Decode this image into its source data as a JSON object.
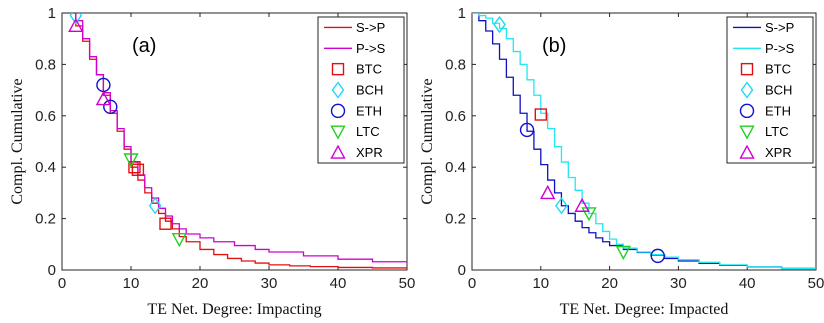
{
  "chart_data": [
    {
      "type": "line",
      "panel_label": "(a)",
      "xlabel": "TE Net. Degree: Impacting",
      "ylabel": "Compl. Cumulative",
      "xlim": [
        0,
        50
      ],
      "ylim": [
        0,
        1
      ],
      "xticks": [
        "0",
        "10",
        "20",
        "30",
        "40",
        "50"
      ],
      "yticks": [
        "0",
        "0.2",
        "0.4",
        "0.6",
        "0.8",
        "1"
      ],
      "grid": false,
      "legend_position": "top-right",
      "series": [
        {
          "name": "S->P",
          "style": "step",
          "color": "#e01010",
          "x": [
            0,
            2,
            3,
            4,
            5,
            6,
            7,
            8,
            9,
            10,
            11,
            12,
            13,
            14,
            15,
            16,
            17,
            18,
            20,
            22,
            24,
            26,
            28,
            30,
            33,
            36,
            40,
            45,
            50
          ],
          "y": [
            1.0,
            0.95,
            0.89,
            0.82,
            0.76,
            0.68,
            0.61,
            0.54,
            0.47,
            0.4,
            0.35,
            0.3,
            0.26,
            0.22,
            0.19,
            0.16,
            0.13,
            0.11,
            0.08,
            0.06,
            0.045,
            0.035,
            0.027,
            0.02,
            0.016,
            0.013,
            0.01,
            0.008,
            0.006
          ]
        },
        {
          "name": "P->S",
          "style": "step",
          "color": "#d000d0",
          "x": [
            0,
            2,
            3,
            4,
            5,
            6,
            7,
            8,
            9,
            10,
            11,
            12,
            13,
            14,
            15,
            16,
            17,
            18,
            20,
            22,
            25,
            28,
            30,
            35,
            40,
            45,
            50
          ],
          "y": [
            1.0,
            0.97,
            0.9,
            0.83,
            0.76,
            0.69,
            0.62,
            0.55,
            0.48,
            0.42,
            0.37,
            0.32,
            0.28,
            0.24,
            0.21,
            0.18,
            0.16,
            0.14,
            0.125,
            0.11,
            0.095,
            0.08,
            0.07,
            0.055,
            0.042,
            0.032,
            0.025
          ]
        }
      ],
      "markers": [
        {
          "name": "BTC",
          "shape": "square",
          "color": "#e01010",
          "points": [
            [
              10.5,
              0.4
            ],
            [
              11,
              0.39
            ],
            [
              15,
              0.18
            ]
          ]
        },
        {
          "name": "BCH",
          "shape": "diamond",
          "color": "#20d8f0",
          "points": [
            [
              2,
              0.99
            ],
            [
              13.5,
              0.25
            ]
          ]
        },
        {
          "name": "ETH",
          "shape": "circle",
          "color": "#1010d0",
          "points": [
            [
              6,
              0.72
            ],
            [
              7,
              0.635
            ]
          ]
        },
        {
          "name": "LTC",
          "shape": "triangle-down",
          "color": "#20d020",
          "points": [
            [
              10,
              0.43
            ],
            [
              17,
              0.12
            ]
          ]
        },
        {
          "name": "XPR",
          "shape": "triangle-up",
          "color": "#d000d0",
          "points": [
            [
              2,
              0.95
            ],
            [
              6,
              0.665
            ]
          ]
        }
      ]
    },
    {
      "type": "line",
      "panel_label": "(b)",
      "xlabel": "TE Net. Degree: Impacted",
      "ylabel": "Compl. Cumulative",
      "xlim": [
        0,
        50
      ],
      "ylim": [
        0,
        1
      ],
      "xticks": [
        "0",
        "10",
        "20",
        "30",
        "40",
        "50"
      ],
      "yticks": [
        "0",
        "0.2",
        "0.4",
        "0.6",
        "0.8",
        "1"
      ],
      "grid": false,
      "legend_position": "top-right",
      "series": [
        {
          "name": "S->P",
          "style": "step",
          "color": "#1010c0",
          "x": [
            0,
            1,
            2,
            3,
            4,
            5,
            6,
            7,
            8,
            9,
            10,
            11,
            12,
            13,
            14,
            15,
            16,
            17,
            18,
            19,
            20,
            22,
            24,
            26,
            28,
            30,
            33,
            36,
            40,
            45,
            50
          ],
          "y": [
            1.0,
            0.97,
            0.93,
            0.88,
            0.82,
            0.75,
            0.68,
            0.61,
            0.54,
            0.47,
            0.41,
            0.35,
            0.3,
            0.25,
            0.22,
            0.19,
            0.165,
            0.145,
            0.125,
            0.11,
            0.095,
            0.08,
            0.068,
            0.058,
            0.045,
            0.035,
            0.026,
            0.018,
            0.012,
            0.006,
            0.003
          ]
        },
        {
          "name": "P->S",
          "style": "step",
          "color": "#20e8f0",
          "x": [
            0,
            1,
            2,
            3,
            4,
            5,
            6,
            7,
            8,
            9,
            10,
            11,
            12,
            13,
            14,
            15,
            16,
            17,
            18,
            19,
            20,
            21,
            22,
            24,
            26,
            28,
            30,
            33,
            36,
            40,
            45,
            50
          ],
          "y": [
            1.0,
            0.99,
            0.98,
            0.96,
            0.94,
            0.9,
            0.85,
            0.8,
            0.74,
            0.68,
            0.61,
            0.55,
            0.48,
            0.42,
            0.36,
            0.31,
            0.26,
            0.22,
            0.18,
            0.15,
            0.12,
            0.1,
            0.085,
            0.07,
            0.06,
            0.05,
            0.04,
            0.03,
            0.02,
            0.012,
            0.006,
            0.003
          ]
        }
      ],
      "markers": [
        {
          "name": "BTC",
          "shape": "square",
          "color": "#e01010",
          "points": [
            [
              10,
              0.605
            ]
          ]
        },
        {
          "name": "BCH",
          "shape": "diamond",
          "color": "#20d8f0",
          "points": [
            [
              4,
              0.955
            ],
            [
              13,
              0.25
            ]
          ]
        },
        {
          "name": "ETH",
          "shape": "circle",
          "color": "#1010d0",
          "points": [
            [
              8,
              0.545
            ],
            [
              27,
              0.055
            ]
          ]
        },
        {
          "name": "LTC",
          "shape": "triangle-down",
          "color": "#20d020",
          "points": [
            [
              17,
              0.22
            ],
            [
              22,
              0.07
            ]
          ]
        },
        {
          "name": "XPR",
          "shape": "triangle-up",
          "color": "#d000d0",
          "points": [
            [
              11,
              0.3
            ],
            [
              16,
              0.25
            ]
          ]
        }
      ]
    }
  ]
}
